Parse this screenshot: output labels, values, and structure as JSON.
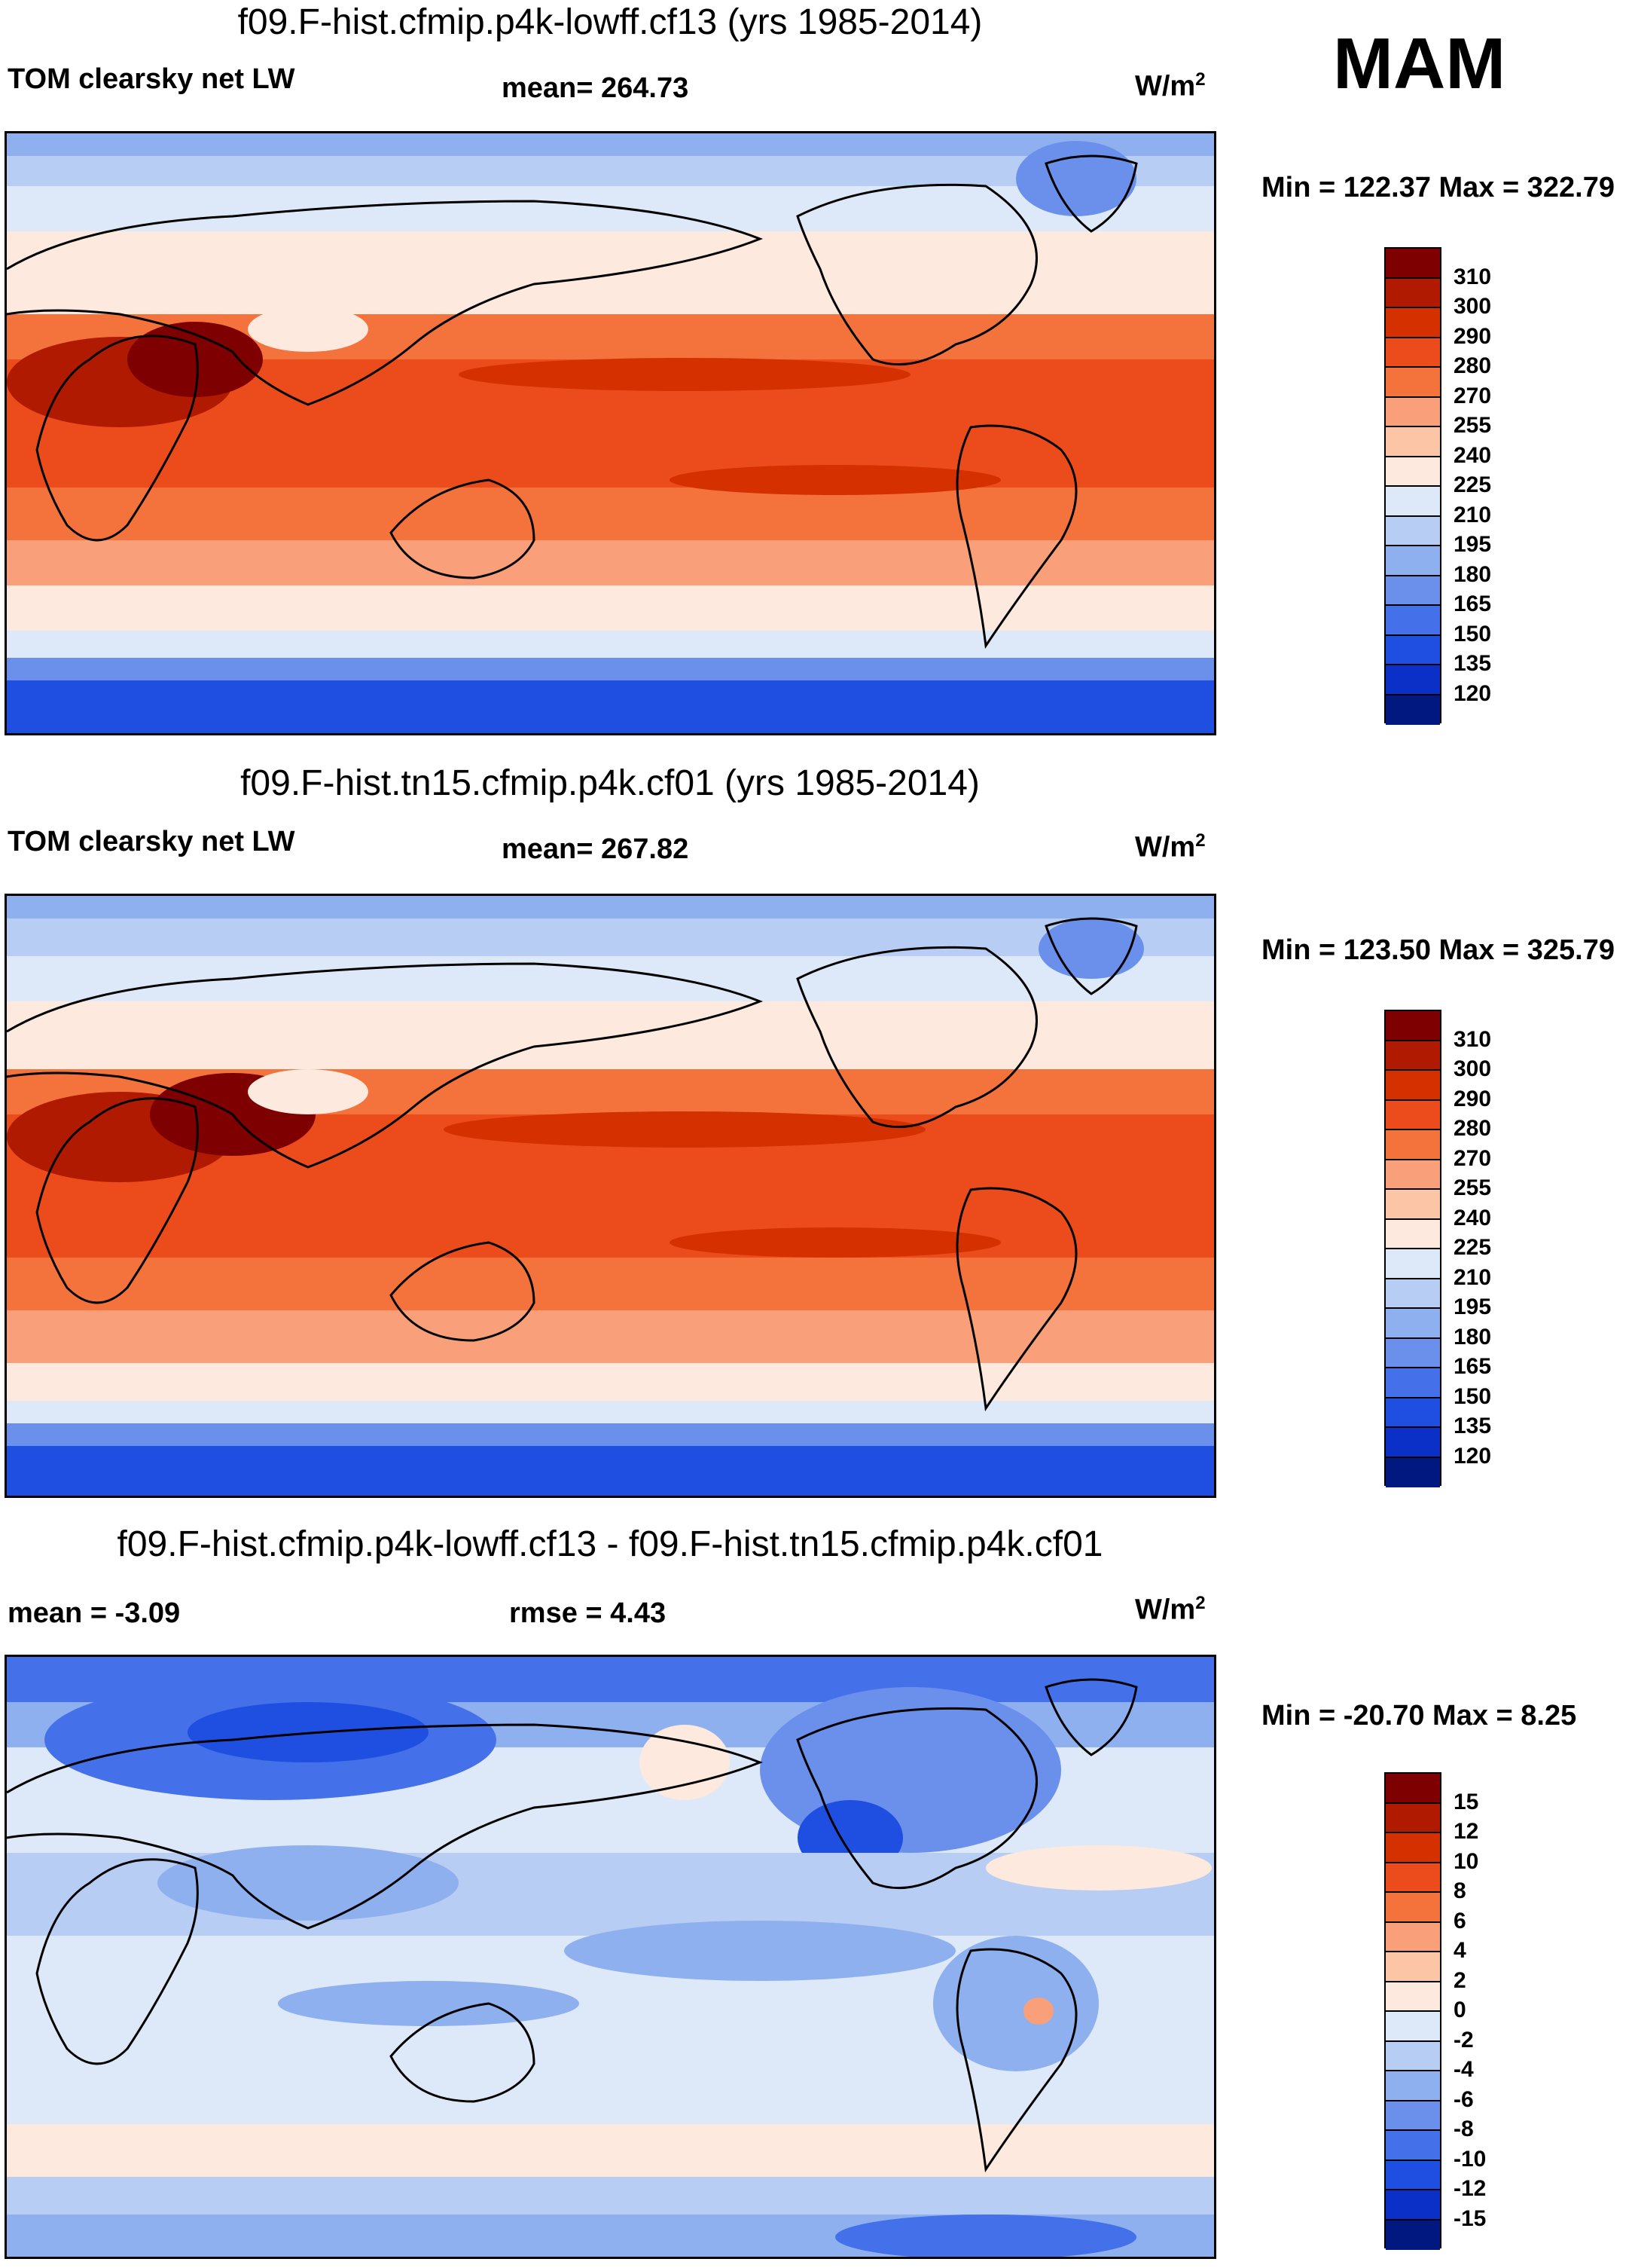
{
  "season": "MAM",
  "units_label": "W/m",
  "units_sup": "2",
  "panels": [
    {
      "title": "f09.F-hist.cfmip.p4k-lowff.cf13 (yrs 1985-2014)",
      "left_label": "TOM clearsky net LW",
      "center_label": "mean= 264.73",
      "minmax": "Min = 122.37 Max = 322.79"
    },
    {
      "title": "f09.F-hist.tn15.cfmip.p4k.cf01 (yrs 1985-2014)",
      "left_label": "TOM clearsky net LW",
      "center_label": "mean= 267.82",
      "minmax": "Min = 123.50 Max = 325.79"
    },
    {
      "title": "f09.F-hist.cfmip.p4k-lowff.cf13 - f09.F-hist.tn15.cfmip.p4k.cf01",
      "left_label": "mean =  -3.09",
      "center_label": "rmse =   4.43",
      "minmax": "Min = -20.70 Max =   8.25"
    }
  ],
  "colorbar_main": {
    "labels": [
      "310",
      "300",
      "290",
      "280",
      "270",
      "255",
      "240",
      "225",
      "210",
      "195",
      "180",
      "165",
      "150",
      "135",
      "120"
    ],
    "colors": [
      "#7f0000",
      "#b01a00",
      "#d43000",
      "#ec4c1c",
      "#f4733d",
      "#f9a07a",
      "#fcc6a6",
      "#fde9dd",
      "#dde9f8",
      "#b7cdf3",
      "#8fb0ee",
      "#6a90ec",
      "#4470ea",
      "#1f4fe0",
      "#0a30c8",
      "#001880"
    ]
  },
  "colorbar_diff": {
    "labels": [
      "15",
      "12",
      "10",
      "8",
      "6",
      "4",
      "2",
      "0",
      "-2",
      "-4",
      "-6",
      "-8",
      "-10",
      "-12",
      "-15"
    ],
    "colors": [
      "#7f0000",
      "#b01a00",
      "#d43000",
      "#ec4c1c",
      "#f4733d",
      "#f9a07a",
      "#fcc6a6",
      "#fde9dd",
      "#dde9f8",
      "#b7cdf3",
      "#8fb0ee",
      "#6a90ec",
      "#4470ea",
      "#1f4fe0",
      "#0a30c8",
      "#001880"
    ]
  }
}
